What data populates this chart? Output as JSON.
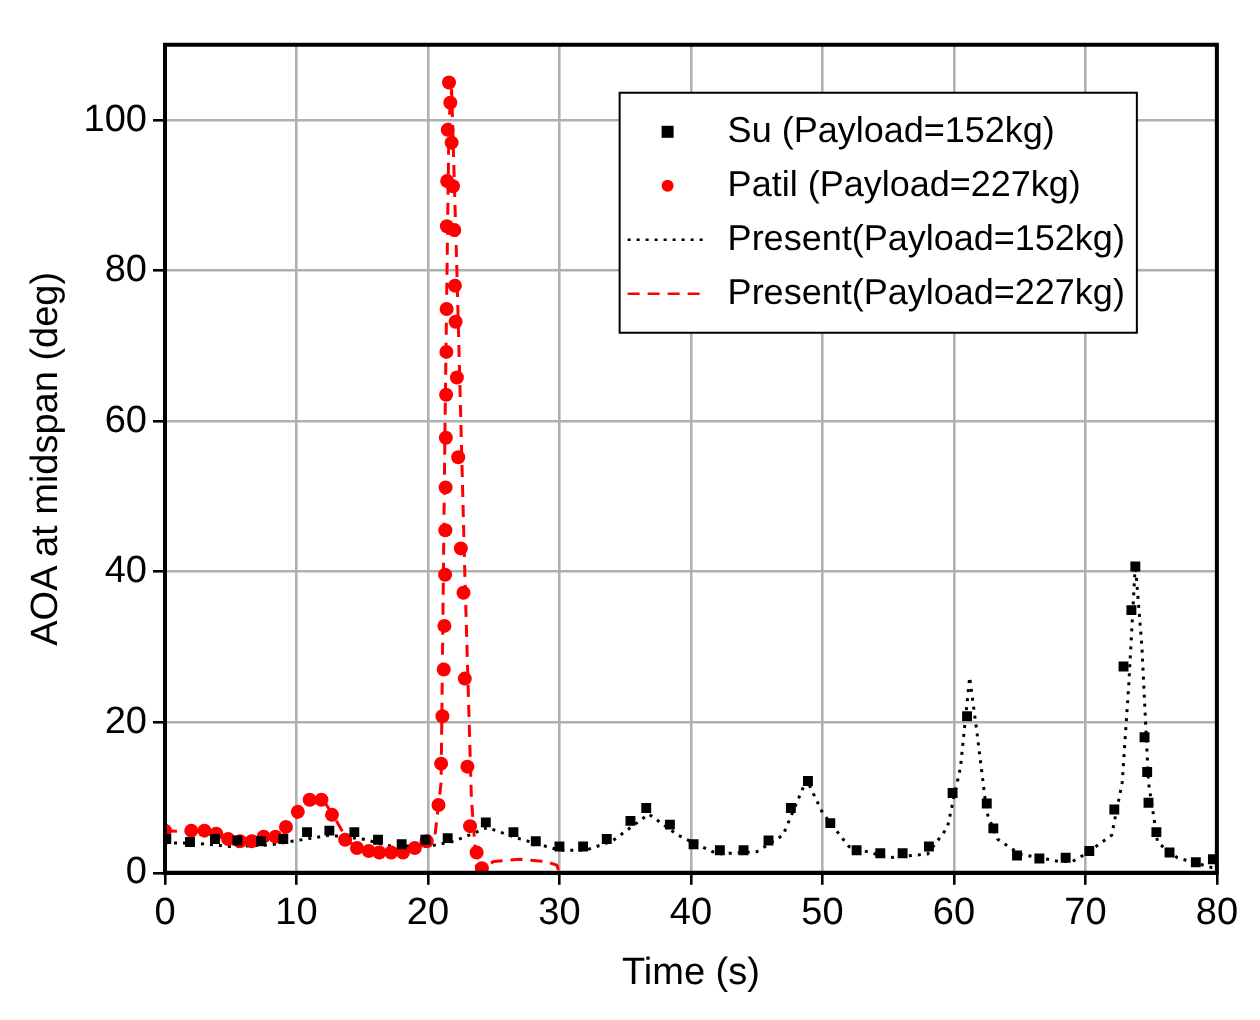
{
  "chart_data": {
    "type": "scatter",
    "xlabel": "Time (s)",
    "ylabel": "AOA at midspan (deg)",
    "xlim": [
      0,
      80
    ],
    "ylim": [
      0,
      110
    ],
    "xticks": [
      0,
      10,
      20,
      30,
      40,
      50,
      60,
      70,
      80
    ],
    "yticks": [
      0,
      20,
      40,
      60,
      80,
      100
    ],
    "grid": true,
    "legend": "top right",
    "series": [
      {
        "name": "Su (Payload=152kg)",
        "type": "scatter",
        "marker": "square",
        "color": "#000000",
        "x": [
          0.1,
          1.9,
          3.8,
          5.5,
          7.3,
          9,
          10.8,
          12.5,
          14.4,
          16.2,
          18,
          19.8,
          21.5,
          24.4,
          26.5,
          28.2,
          30,
          31.8,
          33.6,
          35.4,
          36.6,
          38.4,
          40.2,
          42.2,
          44,
          45.9,
          47.6,
          48.9,
          50.6,
          52.6,
          54.4,
          56.1,
          58.1,
          59.9,
          61,
          62.5,
          63,
          64.8,
          66.5,
          68.5,
          70.3,
          72.2,
          72.9,
          73.5,
          73.8,
          74.5,
          74.7,
          74.8,
          75.4,
          76.4,
          78.4,
          79.7
        ],
        "values": [
          4.5,
          4.1,
          4.5,
          4.3,
          4.2,
          4.5,
          5.4,
          5.6,
          5.4,
          4.4,
          3.8,
          4.4,
          4.6,
          6.7,
          5.4,
          4.2,
          3.5,
          3.5,
          4.5,
          6.9,
          8.6,
          6.4,
          3.8,
          3,
          3,
          4.3,
          8.6,
          12.2,
          6.6,
          3,
          2.6,
          2.6,
          3.5,
          10.6,
          20.8,
          9.2,
          5.9,
          2.3,
          1.9,
          2,
          2.9,
          8.4,
          27.4,
          34.9,
          40.7,
          18,
          13.4,
          9.3,
          5.4,
          2.7,
          1.4,
          1.8
        ]
      },
      {
        "name": "Patil (Payload=227kg)",
        "type": "scatter",
        "marker": "circle",
        "color": "#ff0000",
        "x": [
          0,
          2,
          3,
          3.9,
          4.8,
          5.7,
          6.6,
          7.5,
          8.4,
          9.2,
          10.1,
          11,
          11.9,
          12.7,
          13.7,
          14.6,
          15.5,
          16.3,
          17.2,
          18.1,
          19,
          19.9,
          20.8,
          21,
          21.1,
          21.2,
          21.25,
          21.3,
          21.32,
          21.34,
          21.36,
          21.38,
          21.4,
          21.42,
          21.44,
          21.46,
          21.5,
          21.6,
          21.7,
          21.8,
          21.9,
          22,
          22.05,
          22.1,
          22.2,
          22.3,
          22.5,
          22.7,
          22.8,
          23,
          23.2,
          23.7,
          24.1
        ],
        "values": [
          5.6,
          5.6,
          5.6,
          5.2,
          4.5,
          4.2,
          4.2,
          4.8,
          4.8,
          6.1,
          8.1,
          9.7,
          9.7,
          7.7,
          4.4,
          3.3,
          2.9,
          2.7,
          2.7,
          2.7,
          3.3,
          4.2,
          9,
          14.5,
          20.8,
          27,
          32.8,
          39.6,
          45.5,
          51.2,
          57.8,
          63.5,
          69.2,
          74.9,
          85.9,
          91.9,
          98.7,
          105,
          102.3,
          97,
          91.2,
          85.4,
          78,
          73.2,
          65.8,
          55.2,
          43.1,
          37.2,
          25.8,
          14.1,
          6.2,
          2.7,
          0.6
        ]
      },
      {
        "name": "Present(Payload=152kg)",
        "type": "line",
        "marker": "none",
        "line_style": "dotted",
        "color": "#000000",
        "x": [
          0,
          2.5,
          5,
          8,
          12.5,
          15,
          17,
          20,
          22,
          24.5,
          27,
          30,
          32,
          34,
          36.8,
          39,
          42,
          45,
          47,
          48.8,
          50,
          52,
          55,
          58,
          59.5,
          60.5,
          61.2,
          61.8,
          62.5,
          63.3,
          65,
          68,
          69,
          70,
          72,
          72.8,
          73.3,
          73.8,
          74.3,
          74.8,
          75.5,
          77,
          80
        ],
        "values": [
          4,
          3.9,
          3.5,
          3.7,
          5,
          4.5,
          3.6,
          3.5,
          4.2,
          6,
          4.5,
          3,
          3,
          4.2,
          7.8,
          5,
          2.5,
          2.8,
          5,
          12.4,
          8,
          3.5,
          2,
          2.5,
          6,
          14,
          26,
          18,
          8,
          4.5,
          2.5,
          1.5,
          1.5,
          2.5,
          5,
          12,
          25,
          41,
          30,
          12,
          4,
          2,
          0.5
        ]
      },
      {
        "name": "Present(Payload=227kg)",
        "type": "line",
        "marker": "none",
        "line_style": "dashed",
        "color": "#ff0000",
        "x": [
          0,
          3,
          6,
          9,
          10.5,
          12,
          13,
          14,
          16,
          19,
          20.5,
          21,
          21.3,
          21.6,
          21.8,
          22.2,
          22.8,
          23.3,
          23.7,
          24.5,
          25,
          27,
          29,
          29.8,
          30
        ],
        "values": [
          5.6,
          5.3,
          4.3,
          5,
          8.5,
          9.8,
          7,
          4,
          2.8,
          3,
          4.5,
          12,
          60,
          100,
          104,
          80,
          40,
          10,
          0.5,
          1,
          1.5,
          1.8,
          1.5,
          1,
          0
        ]
      }
    ]
  }
}
